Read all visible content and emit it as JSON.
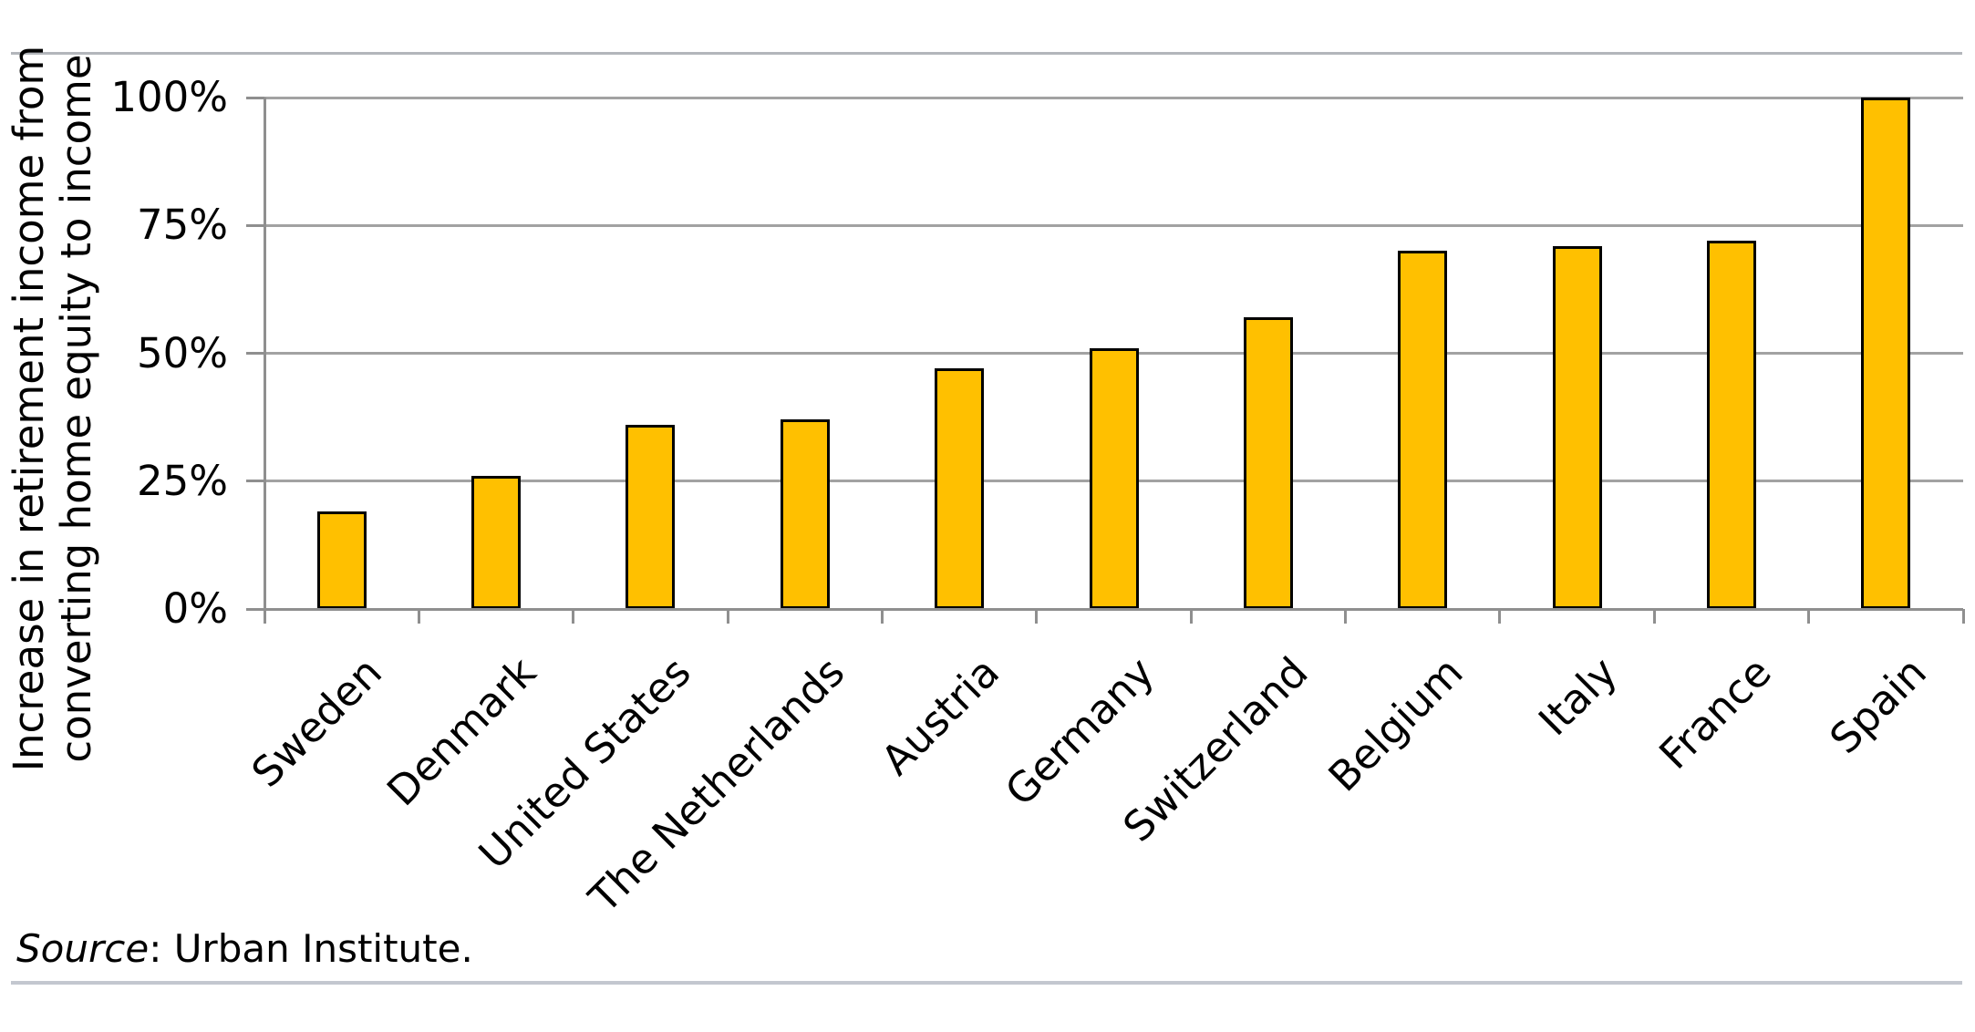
{
  "chart_data": {
    "type": "bar",
    "title": "",
    "categories": [
      "Sweden",
      "Denmark",
      "United States",
      "The Netherlands",
      "Austria",
      "Germany",
      "Switzerland",
      "Belgium",
      "Italy",
      "France",
      "Spain"
    ],
    "values": [
      19,
      26,
      36,
      37,
      47,
      51,
      57,
      70,
      71,
      72,
      100
    ],
    "value_unit": "percent",
    "ylabel": "Increase in retirement income from converting home equity to income",
    "ylabel_lines": [
      "Increase in retirement income from",
      "converting home equity to income"
    ],
    "xlabel": "",
    "ylim": [
      0,
      100
    ],
    "ytick_values": [
      0,
      25,
      50,
      75,
      100
    ],
    "ytick_labels": [
      "0%",
      "25%",
      "50%",
      "75%",
      "100%"
    ],
    "grid": "horizontal",
    "legend": "none",
    "x_label_rotation_deg": 45,
    "bar_fill": "#FFC000",
    "bar_border": "#000000"
  },
  "source": {
    "italic": "Source",
    "rest": ": Urban Institute."
  }
}
